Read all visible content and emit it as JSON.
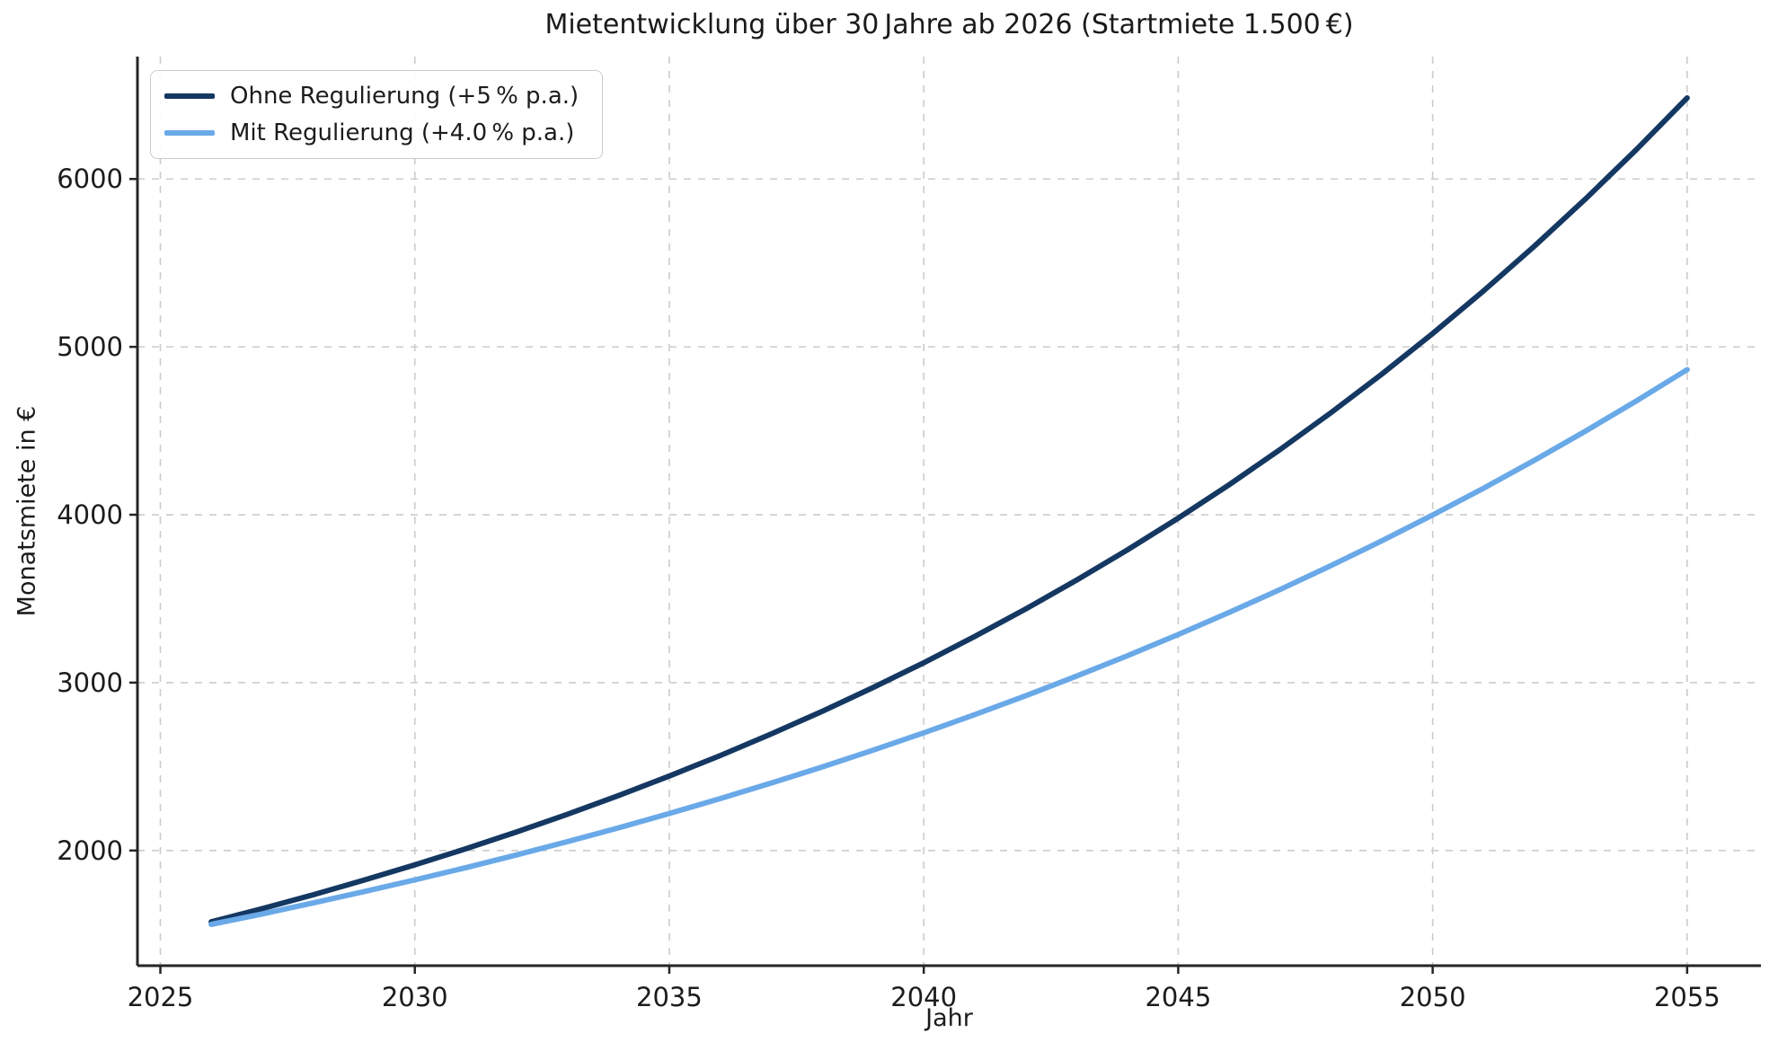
{
  "chart_data": {
    "type": "line",
    "title": "Mietentwicklung über 30 Jahre ab 2026 (Startmiete 1.500 €)",
    "xlabel": "Jahr",
    "ylabel": "Monatsmiete in €",
    "x": [
      2026,
      2027,
      2028,
      2029,
      2030,
      2031,
      2032,
      2033,
      2034,
      2035,
      2036,
      2037,
      2038,
      2039,
      2040,
      2041,
      2042,
      2043,
      2044,
      2045,
      2046,
      2047,
      2048,
      2049,
      2050,
      2051,
      2052,
      2053,
      2054,
      2055
    ],
    "series": [
      {
        "name": "Ohne Regulierung (+5 % p.a.)",
        "color": "#143862",
        "line_width": 6,
        "values": [
          1575.0,
          1653.75,
          1736.44,
          1823.26,
          1914.42,
          2010.14,
          2110.65,
          2216.18,
          2326.99,
          2443.34,
          2565.51,
          2693.78,
          2828.47,
          2969.9,
          3118.39,
          3274.31,
          3438.03,
          3609.93,
          3790.43,
          3979.95,
          4178.94,
          4387.89,
          4607.29,
          4837.65,
          5079.53,
          5333.51,
          5600.18,
          5880.19,
          6174.2,
          6482.91
        ]
      },
      {
        "name": "Mit Regulierung (+4.0 % p.a.)",
        "color": "#6aa9e8",
        "line_width": 6,
        "values": [
          1560.0,
          1622.4,
          1687.3,
          1754.79,
          1824.98,
          1897.98,
          1973.9,
          2052.85,
          2134.97,
          2220.37,
          2309.18,
          2401.25,
          2497.3,
          2597.19,
          2701.08,
          2809.12,
          2921.49,
          3038.35,
          3159.88,
          3286.27,
          3417.73,
          3554.43,
          3696.61,
          3844.48,
          3998.25,
          4158.19,
          4324.51,
          4497.49,
          4677.39,
          4864.49
        ]
      }
    ],
    "xticks": [
      2025,
      2030,
      2035,
      2040,
      2045,
      2050,
      2055
    ],
    "yticks": [
      2000,
      3000,
      4000,
      5000,
      6000
    ],
    "xlim": [
      2024.55,
      2056.45
    ],
    "ylim": [
      1314,
      6729
    ],
    "grid": true,
    "grid_style": "dashed",
    "legend_position": "upper left",
    "colors": {
      "grid": "#cccccc",
      "spine": "#262626",
      "text": "#1c1c1c"
    }
  }
}
